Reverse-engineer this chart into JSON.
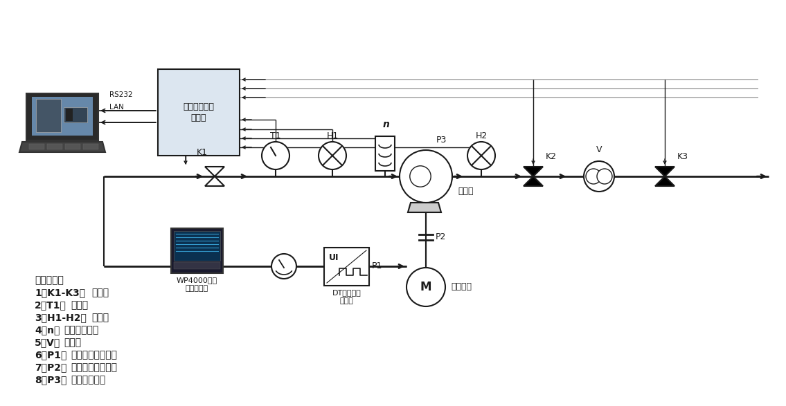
{
  "bg_color": "#ffffff",
  "line_color": "#1a1a1a",
  "box_fill": "#dce6f0",
  "gray_color": "#aaaaaa",
  "legend_items": [
    "参量说明：",
    "1、K1-K3：电磁阀",
    "2、T1：温度计",
    "3、H1-H2：压力计",
    "4、n：水泵实时转速",
    "5、V：流量计",
    "6、P1：拖动电机输入功率",
    "7、P2：拖动电机输出功率",
    "8、P3：水泵输出功率"
  ],
  "instrument_box_label": "水泵综合参数\n测试仪",
  "rs232": "RS232",
  "lan": "LAN",
  "pump_label": "离心泵",
  "motor_label": "拖动电机",
  "wp4000_label": "WP4000变频\n功率分析仪",
  "dt_label": "DT系列数字\n变送器"
}
